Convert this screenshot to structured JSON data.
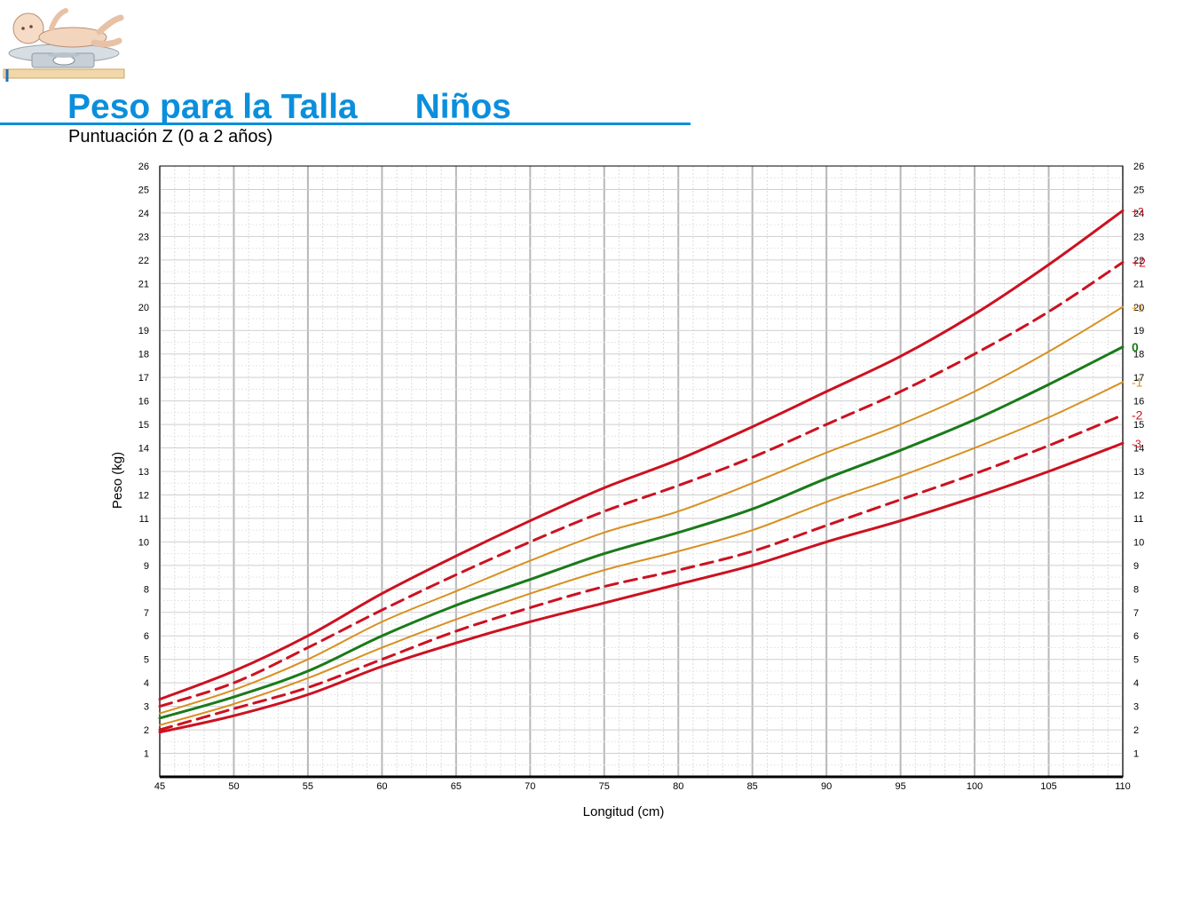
{
  "header": {
    "title": "Peso para la Talla      Niños",
    "subtitle": "Puntuación Z (0 a 2 años)"
  },
  "logo": {
    "icon": "baby-on-scale-icon"
  },
  "colors": {
    "accent": "#0b8fdc",
    "red": "#cc1120",
    "orange": "#d89020",
    "green": "#1a7a1a"
  },
  "chart_data": {
    "type": "line",
    "title": "",
    "xlabel": "Longitud (cm)",
    "ylabel": "Peso (kg)",
    "xlim": [
      45,
      110
    ],
    "ylim": [
      0,
      26
    ],
    "x_ticks": [
      45,
      50,
      55,
      60,
      65,
      70,
      75,
      80,
      85,
      90,
      95,
      100,
      105,
      110
    ],
    "y_ticks": [
      1,
      2,
      3,
      4,
      5,
      6,
      7,
      8,
      9,
      10,
      11,
      12,
      13,
      14,
      15,
      16,
      17,
      18,
      19,
      20,
      21,
      22,
      23,
      24,
      25,
      26
    ],
    "grid": true,
    "x": [
      45,
      50,
      55,
      60,
      65,
      70,
      75,
      80,
      85,
      90,
      95,
      100,
      105,
      110
    ],
    "series": [
      {
        "name": "+3",
        "color": "#cc1120",
        "style": "solid",
        "values": [
          3.3,
          4.5,
          6.0,
          7.8,
          9.4,
          10.9,
          12.3,
          13.5,
          14.9,
          16.4,
          17.9,
          19.7,
          21.8,
          24.1
        ]
      },
      {
        "name": "+2",
        "color": "#cc1120",
        "style": "dashed",
        "values": [
          3.0,
          4.0,
          5.5,
          7.1,
          8.6,
          10.0,
          11.3,
          12.4,
          13.6,
          15.0,
          16.4,
          18.0,
          19.8,
          21.9
        ]
      },
      {
        "name": "+1",
        "color": "#d89020",
        "style": "solid",
        "values": [
          2.7,
          3.7,
          5.0,
          6.6,
          7.9,
          9.2,
          10.4,
          11.3,
          12.5,
          13.8,
          15.0,
          16.4,
          18.1,
          20.0
        ]
      },
      {
        "name": "0",
        "color": "#1a7a1a",
        "style": "solid",
        "values": [
          2.5,
          3.4,
          4.5,
          6.0,
          7.3,
          8.4,
          9.5,
          10.4,
          11.4,
          12.7,
          13.9,
          15.2,
          16.7,
          18.3
        ]
      },
      {
        "name": "-1",
        "color": "#d89020",
        "style": "solid",
        "values": [
          2.2,
          3.1,
          4.2,
          5.5,
          6.7,
          7.8,
          8.8,
          9.6,
          10.5,
          11.7,
          12.8,
          14.0,
          15.3,
          16.8
        ]
      },
      {
        "name": "-2",
        "color": "#cc1120",
        "style": "dashed",
        "values": [
          2.0,
          2.9,
          3.8,
          5.0,
          6.2,
          7.2,
          8.1,
          8.8,
          9.6,
          10.7,
          11.8,
          12.9,
          14.1,
          15.4
        ]
      },
      {
        "name": "-3",
        "color": "#cc1120",
        "style": "solid",
        "values": [
          1.9,
          2.6,
          3.5,
          4.7,
          5.7,
          6.6,
          7.4,
          8.2,
          9.0,
          10.0,
          10.9,
          11.9,
          13.0,
          14.2
        ]
      }
    ]
  }
}
